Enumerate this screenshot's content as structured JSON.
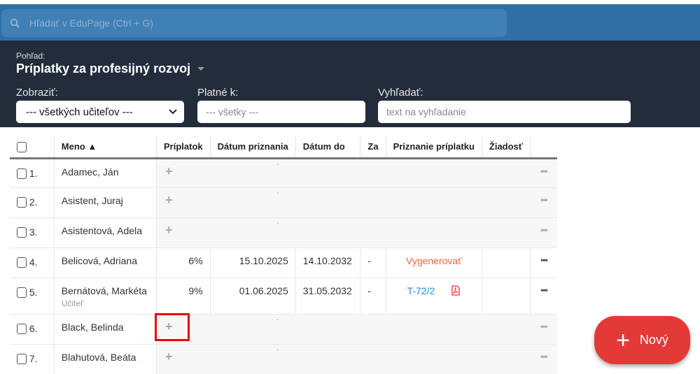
{
  "search": {
    "placeholder": "Hľadať v EduPage (Ctrl + G)"
  },
  "header": {
    "view_label": "Pohľad:",
    "view_title": "Príplatky za profesijný rozvoj",
    "filters": {
      "show_label": "Zobraziť:",
      "show_value": "--- všetkých učiteľov ---",
      "valid_label": "Platné k:",
      "valid_placeholder": "--- všetky ---",
      "search_label": "Vyhľadať:",
      "search_placeholder": "text na vyhľadanie"
    }
  },
  "table": {
    "columns": [
      "Meno ▲",
      "Príplatok",
      "Dátum priznania",
      "Dátum do",
      "Za",
      "Priznanie príplatku",
      "Žiadosť"
    ],
    "rows": [
      {
        "num": "1.",
        "name": "Adamec, Ján",
        "empty": true,
        "dash": "-"
      },
      {
        "num": "2.",
        "name": "Asistent, Juraj",
        "empty": true,
        "dash": "-"
      },
      {
        "num": "3.",
        "name": "Asistentová, Adela",
        "empty": true,
        "dash": "-"
      },
      {
        "num": "4.",
        "name": "Belicová, Adriana",
        "pct": "6%",
        "from": "15.10.2025",
        "to": "14.10.2032",
        "za": "-",
        "grant": "Vygenerovať"
      },
      {
        "num": "5.",
        "name": "Bernátová, Markéta",
        "role": "Učiteľ",
        "pct": "9%",
        "from": "01.06.2025",
        "to": "31.05.2032",
        "za": "-",
        "grant": "T-72/2"
      },
      {
        "num": "6.",
        "name": "Black, Belinda",
        "empty": true,
        "dash": "-"
      },
      {
        "num": "7.",
        "name": "Blahutová, Beáta",
        "empty": true,
        "dash": "-"
      }
    ]
  },
  "fab": {
    "label": "Nový"
  },
  "colors": {
    "topbar": "#2f6fa4",
    "header": "#222c3b",
    "fab": "#e33a37",
    "link": "#1a8fd8",
    "generate": "#f0643c",
    "highlight": "#ee0000"
  }
}
